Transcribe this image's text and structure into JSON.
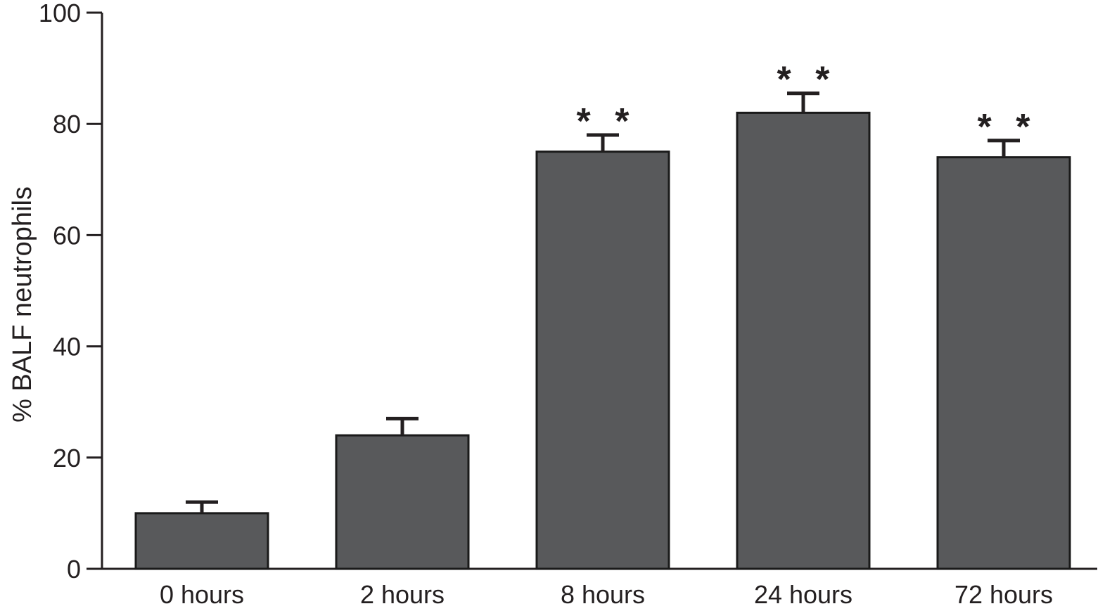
{
  "chart_data": {
    "type": "bar",
    "title": "",
    "xlabel": "",
    "ylabel": "% BALF neutrophils",
    "ylim": [
      0,
      100
    ],
    "yticks": [
      0,
      20,
      40,
      60,
      80,
      100
    ],
    "categories": [
      "0 hours",
      "2 hours",
      "8 hours",
      "24 hours",
      "72 hours"
    ],
    "values": [
      10,
      24,
      75,
      82,
      74
    ],
    "error_upper": [
      2,
      3,
      3,
      3.5,
      3
    ],
    "annotations": [
      "",
      "",
      "* *",
      "* *",
      "* *"
    ],
    "grid": false,
    "legend": "none",
    "colors": {
      "bar": "#58595b",
      "axis": "#231f20"
    }
  }
}
